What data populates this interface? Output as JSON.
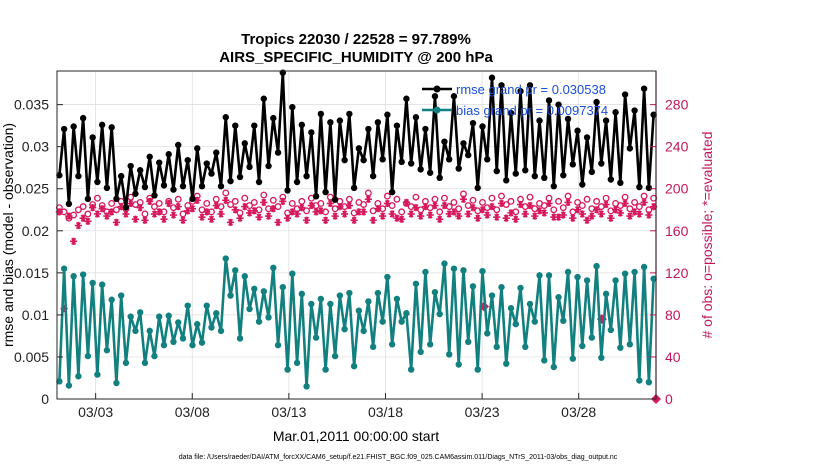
{
  "chart_data": {
    "type": "line",
    "title": "Tropics 22030 / 22528 = 97.789%",
    "subtitle": "AIRS_SPECIFIC_HUMIDITY @ 200 hPa",
    "xlabel": "Mar.01,2011 00:00:00 start",
    "ylabel_left": "rmse and bias (model - observation)",
    "ylabel_right": "# of obs: o=possible; *=evaluated",
    "footer": "data file: /Users/raeder/DAI/ATM_forcXX/CAM6_setup/f.e21.FHIST_BGC.f09_025.CAM6assim.011/Diags_NTrS_2011-03/obs_diag_output.nc",
    "x_ticks": [
      "03/03",
      "03/08",
      "03/13",
      "03/18",
      "03/23",
      "03/28"
    ],
    "y_left_ticks": [
      "0",
      "0.005",
      "0.01",
      "0.015",
      "0.02",
      "0.025",
      "0.03",
      "0.035"
    ],
    "y_right_ticks": [
      "0",
      "40",
      "80",
      "120",
      "160",
      "200",
      "240",
      "280"
    ],
    "ylim_left": [
      0,
      0.039
    ],
    "ylim_right": [
      0,
      312
    ],
    "x_range_days": [
      0,
      31
    ],
    "x_tick_days": [
      2,
      7,
      12,
      17,
      22,
      27
    ],
    "legend": {
      "rmse": "rmse grand pr = 0.030538",
      "bias": "bias grand pr = 0.0097374"
    },
    "series": [
      {
        "name": "rmse",
        "color": "#000000",
        "values": [
          0.0266,
          0.0321,
          0.0232,
          0.0324,
          0.0265,
          0.0334,
          0.0238,
          0.0311,
          0.0258,
          0.0326,
          0.0251,
          0.0323,
          0.0238,
          0.0265,
          0.0228,
          0.0277,
          0.0244,
          0.0272,
          0.0252,
          0.0288,
          0.0242,
          0.0281,
          0.0254,
          0.0291,
          0.0249,
          0.0302,
          0.0253,
          0.0284,
          0.0238,
          0.0298,
          0.0253,
          0.028,
          0.0268,
          0.0293,
          0.0253,
          0.0335,
          0.0259,
          0.0325,
          0.0264,
          0.0304,
          0.0276,
          0.0325,
          0.0258,
          0.0357,
          0.0277,
          0.0334,
          0.0293,
          0.0388,
          0.0248,
          0.0347,
          0.0258,
          0.0326,
          0.0265,
          0.0317,
          0.0241,
          0.0339,
          0.0246,
          0.0329,
          0.0237,
          0.0331,
          0.0284,
          0.0339,
          0.0251,
          0.0298,
          0.0284,
          0.0321,
          0.0265,
          0.0329,
          0.0285,
          0.0338,
          0.0246,
          0.0325,
          0.0282,
          0.0357,
          0.028,
          0.0335,
          0.0273,
          0.0321,
          0.0269,
          0.036,
          0.0263,
          0.0306,
          0.0285,
          0.036,
          0.0274,
          0.0304,
          0.029,
          0.0328,
          0.0251,
          0.0324,
          0.0285,
          0.0382,
          0.0271,
          0.0373,
          0.026,
          0.034,
          0.0268,
          0.0366,
          0.0272,
          0.0373,
          0.0265,
          0.0331,
          0.0263,
          0.0355,
          0.0253,
          0.035,
          0.0266,
          0.0333,
          0.0279,
          0.0319,
          0.0255,
          0.0311,
          0.027,
          0.0353,
          0.028,
          0.0331,
          0.0261,
          0.0341,
          0.0257,
          0.0362,
          0.0298,
          0.0343,
          0.0252,
          0.0369,
          0.0251,
          0.0338
        ]
      },
      {
        "name": "bias",
        "color": "#138080",
        "values": [
          0.0021,
          0.0155,
          0.0016,
          0.0146,
          0.0027,
          0.0148,
          0.0051,
          0.0138,
          0.0029,
          0.0136,
          0.0058,
          0.0118,
          0.0019,
          0.0123,
          0.0043,
          0.0098,
          0.0081,
          0.0103,
          0.0043,
          0.0081,
          0.0051,
          0.0098,
          0.0064,
          0.0099,
          0.0068,
          0.0091,
          0.0072,
          0.0111,
          0.0064,
          0.0089,
          0.0067,
          0.0111,
          0.0085,
          0.0102,
          0.0081,
          0.0167,
          0.0123,
          0.0153,
          0.0072,
          0.0146,
          0.0107,
          0.0131,
          0.0092,
          0.0128,
          0.0097,
          0.0156,
          0.0064,
          0.0133,
          0.0035,
          0.0149,
          0.0043,
          0.0125,
          0.0015,
          0.0113,
          0.0073,
          0.0119,
          0.0035,
          0.0113,
          0.0051,
          0.0123,
          0.0083,
          0.0126,
          0.0039,
          0.0105,
          0.0081,
          0.0116,
          0.0062,
          0.0126,
          0.0092,
          0.0145,
          0.0065,
          0.0119,
          0.0092,
          0.0102,
          0.0035,
          0.0137,
          0.0056,
          0.0151,
          0.0065,
          0.0127,
          0.0101,
          0.0161,
          0.0053,
          0.0155,
          0.0041,
          0.0153,
          0.0068,
          0.0134,
          0.0035,
          0.0152,
          0.0078,
          0.0123,
          0.0062,
          0.0133,
          0.0042,
          0.0108,
          0.0089,
          0.0132,
          0.0062,
          0.0113,
          0.0092,
          0.0147,
          0.0046,
          0.0147,
          0.0038,
          0.0121,
          0.0093,
          0.0151,
          0.0048,
          0.0145,
          0.0063,
          0.0141,
          0.0073,
          0.0158,
          0.0049,
          0.0125,
          0.0082,
          0.0141,
          0.0061,
          0.0149,
          0.0065,
          0.0151,
          0.0022,
          0.0157,
          0.002,
          0.0143
        ]
      },
      {
        "name": "obs_possible",
        "color": "#d6195e",
        "values": [
          182,
          178,
          172,
          175,
          180,
          183,
          176,
          185,
          191,
          184,
          178,
          186,
          180,
          188,
          181,
          192,
          185,
          187,
          176,
          191,
          183,
          186,
          178,
          188,
          182,
          190,
          176,
          184,
          188,
          193,
          180,
          186,
          178,
          190,
          183,
          196,
          185,
          188,
          177,
          191,
          184,
          187,
          180,
          194,
          181,
          189,
          183,
          192,
          177,
          186,
          181,
          188,
          179,
          191,
          184,
          186,
          178,
          192,
          181,
          188,
          183,
          190,
          177,
          187,
          185,
          196,
          179,
          186,
          181,
          193,
          184,
          190,
          178,
          186,
          183,
          192,
          180,
          188,
          182,
          190,
          178,
          191,
          183,
          187,
          181,
          195,
          184,
          189,
          179,
          187,
          182,
          191,
          180,
          193,
          185,
          188,
          178,
          190,
          183,
          192,
          181,
          186,
          184,
          191,
          180,
          188,
          182,
          193,
          178,
          187,
          184,
          190,
          181,
          188,
          183,
          191,
          179,
          186,
          184,
          192,
          181,
          187,
          183,
          193,
          180,
          191
        ]
      },
      {
        "name": "obs_evaluated",
        "color": "#d6195e",
        "values": [
          178,
          86,
          174,
          150,
          165,
          172,
          169,
          182,
          176,
          181,
          174,
          178,
          168,
          183,
          176,
          186,
          171,
          182,
          170,
          188,
          176,
          178,
          171,
          186,
          175,
          183,
          170,
          179,
          181,
          189,
          173,
          178,
          171,
          184,
          176,
          189,
          168,
          180,
          172,
          183,
          177,
          179,
          173,
          187,
          174,
          181,
          168,
          188,
          172,
          178,
          176,
          182,
          170,
          184,
          178,
          179,
          170,
          186,
          174,
          183,
          176,
          184,
          170,
          178,
          178,
          190,
          170,
          181,
          174,
          186,
          176,
          172,
          171,
          187,
          176,
          182,
          174,
          183,
          175,
          184,
          171,
          184,
          176,
          178,
          174,
          190,
          176,
          182,
          172,
          180,
          175,
          183,
          173,
          186,
          172,
          177,
          171,
          185,
          176,
          184,
          174,
          179,
          177,
          186,
          173,
          173,
          175,
          187,
          172,
          180,
          176,
          170,
          174,
          180,
          176,
          185,
          172,
          180,
          177,
          186,
          174,
          178,
          176,
          187,
          175,
          183
        ]
      }
    ],
    "outlier_markers": [
      {
        "series": "obs_evaluated",
        "x_day": 22.1,
        "value": 88
      },
      {
        "series": "obs_evaluated",
        "x_day": 28.2,
        "value": 76
      },
      {
        "series": "obs_evaluated",
        "x_day": 31.0,
        "value": 0
      }
    ]
  }
}
